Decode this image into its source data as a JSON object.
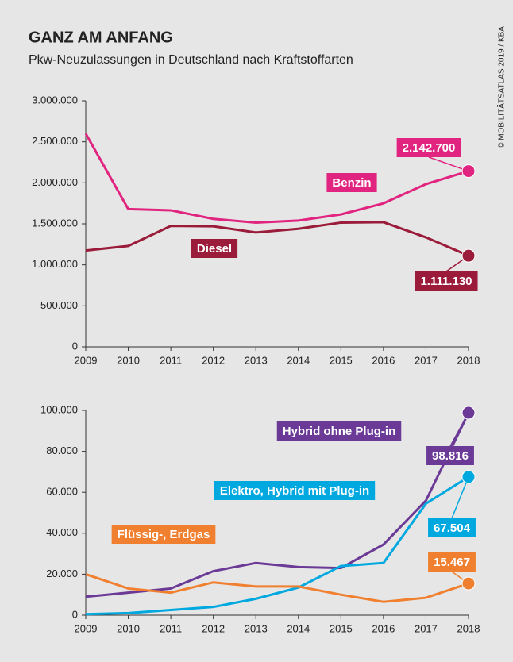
{
  "title": "GANZ AM ANFANG",
  "subtitle": "Pkw-Neuzulassungen in Deutschland nach Kraftstoffarten",
  "source": "© MOBILITÄTSATLAS 2019 / KBA",
  "chart_data": [
    {
      "type": "line",
      "x": [
        2009,
        2010,
        2011,
        2012,
        2013,
        2014,
        2015,
        2016,
        2017,
        2018
      ],
      "xlim": [
        2009,
        2018
      ],
      "ylim": [
        0,
        3000000
      ],
      "yticks": [
        0,
        {
          "value": 500000,
          "label": "500.000"
        },
        {
          "value": 1000000,
          "label": "1.000.000"
        },
        {
          "value": 1500000,
          "label": "1.500.000"
        },
        {
          "value": 2000000,
          "label": "2.000.000"
        },
        {
          "value": 2500000,
          "label": "2.500.000"
        },
        {
          "value": 3000000,
          "label": "3.000.000"
        }
      ],
      "series": [
        {
          "name": "Benzin",
          "color": "#e0247f",
          "values": [
            2600000,
            1680000,
            1665000,
            1560000,
            1515000,
            1540000,
            1615000,
            1750000,
            1985000,
            2142700
          ],
          "value_labels": [
            null,
            null,
            null,
            null,
            null,
            null,
            null,
            null,
            null,
            "2.142.700"
          ]
        },
        {
          "name": "Diesel",
          "color": "#9b1b3a",
          "values": [
            1175000,
            1230000,
            1475000,
            1470000,
            1395000,
            1440000,
            1515000,
            1520000,
            1335000,
            1111130
          ],
          "value_labels": [
            null,
            null,
            null,
            null,
            null,
            null,
            null,
            null,
            null,
            "1.111.130"
          ]
        }
      ]
    },
    {
      "type": "line",
      "x": [
        2009,
        2010,
        2011,
        2012,
        2013,
        2014,
        2015,
        2016,
        2017,
        2018
      ],
      "xlim": [
        2009,
        2018
      ],
      "ylim": [
        0,
        100000
      ],
      "yticks": [
        0,
        {
          "value": 20000,
          "label": "20.000"
        },
        {
          "value": 40000,
          "label": "40.000"
        },
        {
          "value": 60000,
          "label": "60.000"
        },
        {
          "value": 80000,
          "label": "80.000"
        },
        {
          "value": 100000,
          "label": "100.000"
        }
      ],
      "series": [
        {
          "name": "Hybrid ohne Plug-in",
          "color": "#6b3a96",
          "values": [
            9000,
            11000,
            13000,
            21500,
            25500,
            23500,
            23000,
            34500,
            56000,
            98816
          ],
          "value_labels": [
            null,
            null,
            null,
            null,
            null,
            null,
            null,
            null,
            null,
            "98.816"
          ]
        },
        {
          "name": "Elektro, Hybrid mit Plug-in",
          "color": "#00a8e0",
          "values": [
            500,
            1000,
            2500,
            4000,
            8000,
            13500,
            24000,
            25500,
            54500,
            67504
          ],
          "value_labels": [
            null,
            null,
            null,
            null,
            null,
            null,
            null,
            null,
            null,
            "67.504"
          ]
        },
        {
          "name": "Flüssig-, Erdgas",
          "color": "#f08030",
          "values": [
            20000,
            13000,
            11000,
            16000,
            14000,
            14000,
            10000,
            6500,
            8500,
            15467
          ],
          "value_labels": [
            null,
            null,
            null,
            null,
            null,
            null,
            null,
            null,
            null,
            "15.467"
          ]
        }
      ]
    }
  ]
}
